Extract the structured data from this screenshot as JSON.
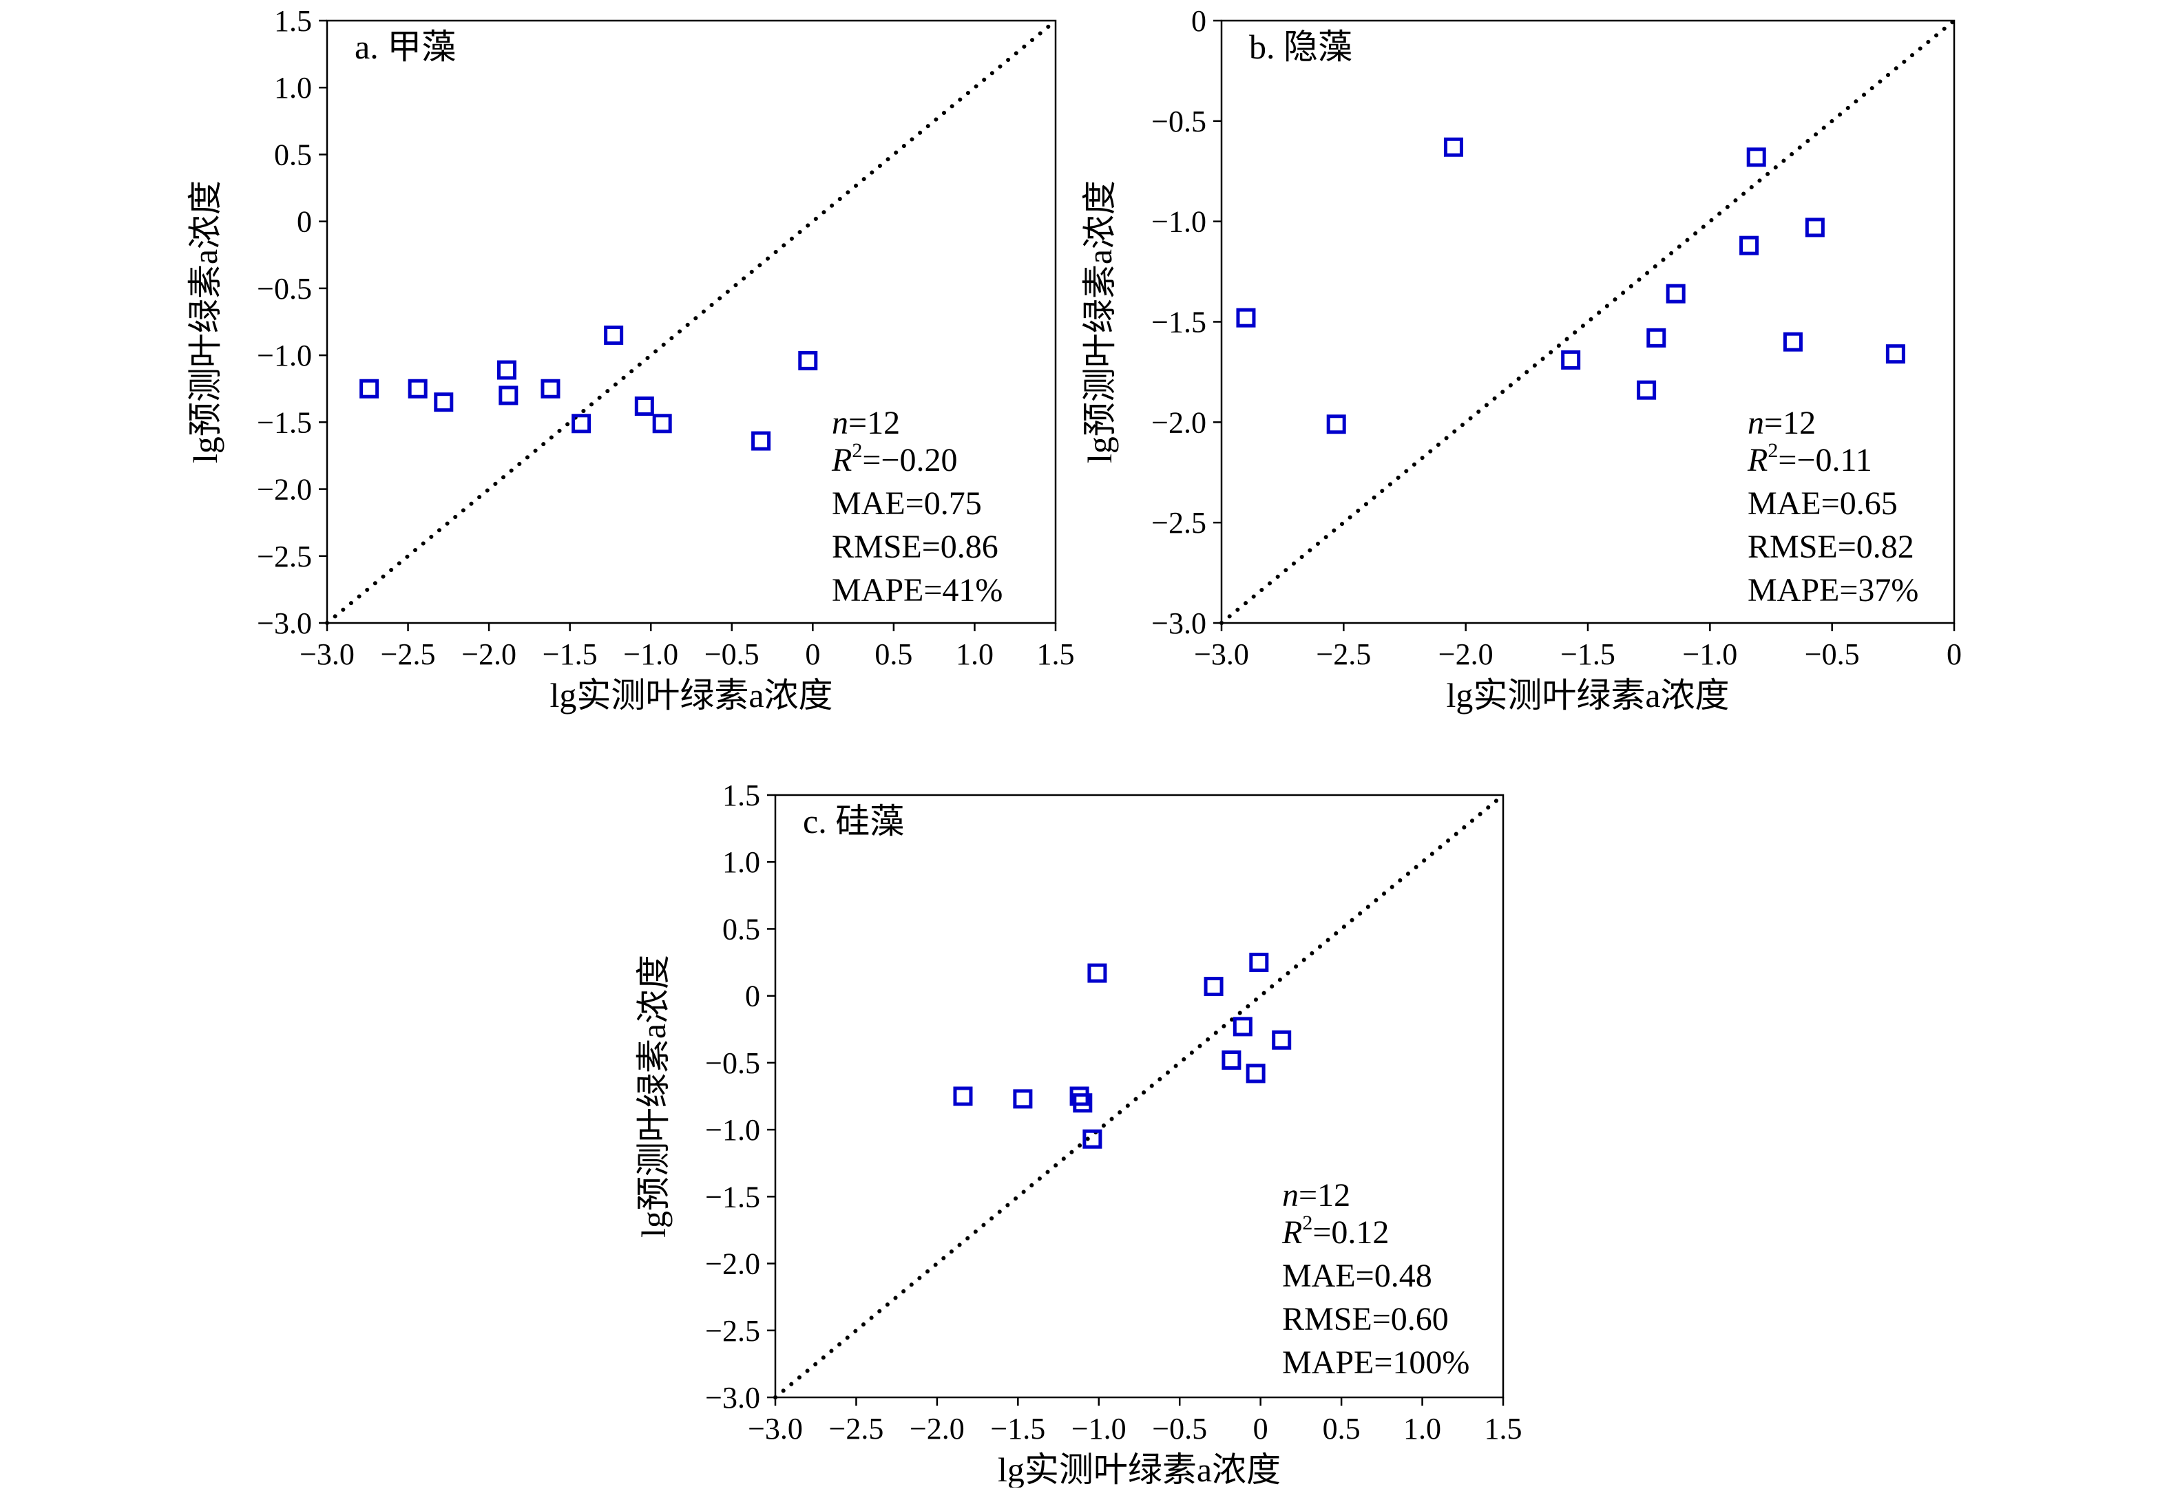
{
  "chart_data": [
    {
      "type": "scatter",
      "title": "a. 甲藻",
      "xlabel": "lg实测叶绿素a浓度",
      "ylabel": "lg预测叶绿素a浓度",
      "xlim": [
        -3.0,
        1.5
      ],
      "ylim": [
        -3.0,
        1.5
      ],
      "xticks": [
        "−3.0",
        "−2.5",
        "−2.0",
        "−1.5",
        "−1.0",
        "−0.5",
        "0",
        "0.5",
        "1.0",
        "1.5"
      ],
      "yticks": [
        "−3.0",
        "−2.5",
        "−2.0",
        "−1.5",
        "−1.0",
        "−0.5",
        "0",
        "0.5",
        "1.0",
        "1.5"
      ],
      "reference_line": "y = x (dotted)",
      "stats": {
        "n": "12",
        "r2": "−0.20",
        "mae": "MAE=0.75",
        "rmse": "RMSE=0.86",
        "mape": "MAPE=41%"
      },
      "series": [
        {
          "marker": "hollow-square",
          "color": "#0000cc",
          "points": [
            [
              -2.74,
              -1.25
            ],
            [
              -2.44,
              -1.25
            ],
            [
              -2.28,
              -1.35
            ],
            [
              -1.89,
              -1.11
            ],
            [
              -1.88,
              -1.3
            ],
            [
              -1.62,
              -1.25
            ],
            [
              -1.43,
              -1.51
            ],
            [
              -1.23,
              -0.85
            ],
            [
              -1.04,
              -1.38
            ],
            [
              -0.93,
              -1.51
            ],
            [
              -0.32,
              -1.64
            ],
            [
              -0.03,
              -1.04
            ]
          ]
        }
      ]
    },
    {
      "type": "scatter",
      "title": "b. 隐藻",
      "xlabel": "lg实测叶绿素a浓度",
      "ylabel": "lg预测叶绿素a浓度",
      "xlim": [
        -3.0,
        0
      ],
      "ylim": [
        -3.0,
        0
      ],
      "xticks": [
        "−3.0",
        "−2.5",
        "−2.0",
        "−1.5",
        "−1.0",
        "−0.5",
        "0"
      ],
      "yticks": [
        "−3.0",
        "−2.5",
        "−2.0",
        "−1.5",
        "−1.0",
        "−0.5",
        "0"
      ],
      "reference_line": "y = x (dotted)",
      "stats": {
        "n": "12",
        "r2": "−0.11",
        "mae": "MAE=0.65",
        "rmse": "RMSE=0.82",
        "mape": "MAPE=37%"
      },
      "series": [
        {
          "marker": "hollow-square",
          "color": "#0000cc",
          "points": [
            [
              -2.9,
              -1.48
            ],
            [
              -2.53,
              -2.01
            ],
            [
              -2.05,
              -0.63
            ],
            [
              -1.57,
              -1.69
            ],
            [
              -1.26,
              -1.84
            ],
            [
              -1.22,
              -1.58
            ],
            [
              -1.14,
              -1.36
            ],
            [
              -0.84,
              -1.12
            ],
            [
              -0.81,
              -0.68
            ],
            [
              -0.66,
              -1.6
            ],
            [
              -0.57,
              -1.03
            ],
            [
              -0.24,
              -1.66
            ]
          ]
        }
      ]
    },
    {
      "type": "scatter",
      "title": "c. 硅藻",
      "xlabel": "lg实测叶绿素a浓度",
      "ylabel": "lg预测叶绿素a浓度",
      "xlim": [
        -3.0,
        1.5
      ],
      "ylim": [
        -3.0,
        1.5
      ],
      "xticks": [
        "−3.0",
        "−2.5",
        "−2.0",
        "−1.5",
        "−1.0",
        "−0.5",
        "0",
        "0.5",
        "1.0",
        "1.5"
      ],
      "yticks": [
        "−3.0",
        "−2.5",
        "−2.0",
        "−1.5",
        "−1.0",
        "−0.5",
        "0",
        "0.5",
        "1.0",
        "1.5"
      ],
      "reference_line": "y = x (dotted)",
      "stats": {
        "n": "12",
        "r2": "0.12",
        "mae": "MAE=0.48",
        "rmse": "RMSE=0.60",
        "mape": "MAPE=100%"
      },
      "series": [
        {
          "marker": "hollow-square",
          "color": "#0000cc",
          "points": [
            [
              -1.84,
              -0.75
            ],
            [
              -1.47,
              -0.77
            ],
            [
              -1.12,
              -0.75
            ],
            [
              -1.1,
              -0.8
            ],
            [
              -1.04,
              -1.07
            ],
            [
              -1.01,
              0.17
            ],
            [
              -0.29,
              0.07
            ],
            [
              -0.18,
              -0.48
            ],
            [
              -0.11,
              -0.23
            ],
            [
              -0.03,
              -0.58
            ],
            [
              -0.01,
              0.25
            ],
            [
              0.13,
              -0.33
            ]
          ]
        }
      ]
    }
  ]
}
